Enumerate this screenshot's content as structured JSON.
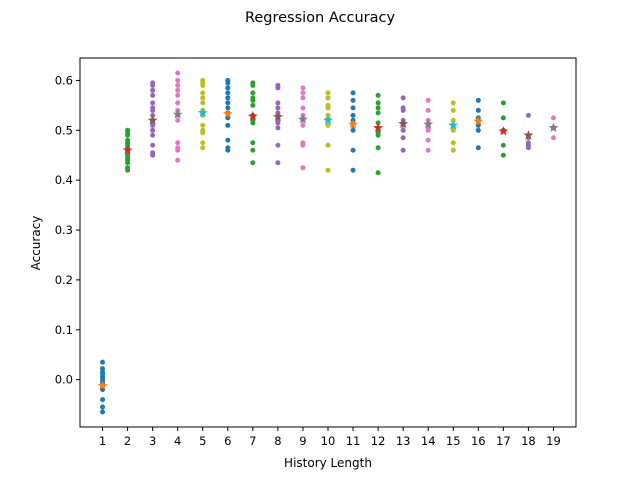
{
  "chart_data": {
    "type": "scatter",
    "title": "Regression Accuracy",
    "xlabel": "History Length",
    "ylabel": "Accuracy",
    "xlim": [
      0.1,
      19.9
    ],
    "ylim": [
      -0.095,
      0.645
    ],
    "xticks": [
      1,
      2,
      3,
      4,
      5,
      6,
      7,
      8,
      9,
      10,
      11,
      12,
      13,
      14,
      15,
      16,
      17,
      18,
      19
    ],
    "yticks": [
      0.0,
      0.1,
      0.2,
      0.3,
      0.4,
      0.5,
      0.6
    ],
    "ytick_labels": [
      "0.0",
      "0.1",
      "0.2",
      "0.3",
      "0.4",
      "0.5",
      "0.6"
    ],
    "grid": false,
    "colors": [
      "#1f77b4",
      "#2ca02c",
      "#9467bd",
      "#e377c2",
      "#bcbd22",
      "#1f77b4",
      "#2ca02c",
      "#9467bd",
      "#e377c2",
      "#bcbd22",
      "#1f77b4",
      "#2ca02c",
      "#9467bd",
      "#e377c2",
      "#bcbd22",
      "#1f77b4",
      "#2ca02c",
      "#9467bd",
      "#e377c2"
    ],
    "mean_colors": [
      "#ff7f0e",
      "#d62728",
      "#8c564b",
      "#7f7f7f",
      "#17becf",
      "#ff7f0e",
      "#d62728",
      "#8c564b",
      "#7f7f7f",
      "#17becf",
      "#ff7f0e",
      "#d62728",
      "#8c564b",
      "#7f7f7f",
      "#17becf",
      "#ff7f0e",
      "#d62728",
      "#8c564b",
      "#7f7f7f"
    ],
    "series": [
      {
        "x": 1,
        "points": [
          0.035,
          0.022,
          0.015,
          0.01,
          0.005,
          0.0,
          -0.005,
          -0.01,
          -0.015,
          -0.02,
          -0.04,
          -0.055,
          -0.065
        ],
        "mean": -0.012
      },
      {
        "x": 2,
        "points": [
          0.5,
          0.495,
          0.49,
          0.48,
          0.475,
          0.47,
          0.465,
          0.46,
          0.45,
          0.445,
          0.44,
          0.435,
          0.425,
          0.42
        ],
        "mean": 0.46
      },
      {
        "x": 3,
        "points": [
          0.595,
          0.59,
          0.58,
          0.57,
          0.555,
          0.545,
          0.54,
          0.53,
          0.52,
          0.51,
          0.5,
          0.49,
          0.47,
          0.455,
          0.45
        ],
        "mean": 0.52
      },
      {
        "x": 4,
        "points": [
          0.615,
          0.6,
          0.59,
          0.58,
          0.57,
          0.555,
          0.54,
          0.53,
          0.52,
          0.475,
          0.465,
          0.46,
          0.44
        ],
        "mean": 0.532
      },
      {
        "x": 5,
        "points": [
          0.6,
          0.595,
          0.59,
          0.575,
          0.565,
          0.555,
          0.54,
          0.53,
          0.51,
          0.5,
          0.495,
          0.475,
          0.465
        ],
        "mean": 0.535
      },
      {
        "x": 6,
        "points": [
          0.6,
          0.595,
          0.585,
          0.575,
          0.565,
          0.555,
          0.545,
          0.535,
          0.525,
          0.51,
          0.48,
          0.465,
          0.46
        ],
        "mean": 0.533
      },
      {
        "x": 7,
        "points": [
          0.595,
          0.59,
          0.575,
          0.565,
          0.56,
          0.55,
          0.53,
          0.52,
          0.515,
          0.475,
          0.46,
          0.435
        ],
        "mean": 0.528
      },
      {
        "x": 8,
        "points": [
          0.59,
          0.585,
          0.555,
          0.545,
          0.535,
          0.53,
          0.52,
          0.515,
          0.505,
          0.47,
          0.435
        ],
        "mean": 0.527
      },
      {
        "x": 9,
        "points": [
          0.585,
          0.575,
          0.565,
          0.545,
          0.53,
          0.52,
          0.51,
          0.475,
          0.47,
          0.425
        ],
        "mean": 0.522
      },
      {
        "x": 10,
        "points": [
          0.575,
          0.565,
          0.55,
          0.545,
          0.53,
          0.525,
          0.51,
          0.47,
          0.42
        ],
        "mean": 0.52
      },
      {
        "x": 11,
        "points": [
          0.575,
          0.56,
          0.545,
          0.53,
          0.52,
          0.51,
          0.5,
          0.46,
          0.42
        ],
        "mean": 0.512
      },
      {
        "x": 12,
        "points": [
          0.57,
          0.555,
          0.545,
          0.535,
          0.515,
          0.5,
          0.495,
          0.49,
          0.465,
          0.415
        ],
        "mean": 0.505
      },
      {
        "x": 13,
        "points": [
          0.565,
          0.545,
          0.54,
          0.52,
          0.51,
          0.5,
          0.485,
          0.46
        ],
        "mean": 0.513
      },
      {
        "x": 14,
        "points": [
          0.56,
          0.54,
          0.52,
          0.505,
          0.5,
          0.48,
          0.46
        ],
        "mean": 0.512
      },
      {
        "x": 15,
        "points": [
          0.555,
          0.54,
          0.52,
          0.51,
          0.5,
          0.475,
          0.46
        ],
        "mean": 0.51
      },
      {
        "x": 16,
        "points": [
          0.56,
          0.54,
          0.525,
          0.51,
          0.5,
          0.465
        ],
        "mean": 0.518
      },
      {
        "x": 17,
        "points": [
          0.555,
          0.525,
          0.5,
          0.47,
          0.45
        ],
        "mean": 0.498
      },
      {
        "x": 18,
        "points": [
          0.53,
          0.485,
          0.475,
          0.47,
          0.465
        ],
        "mean": 0.49
      },
      {
        "x": 19,
        "points": [
          0.525,
          0.505,
          0.485
        ],
        "mean": 0.505
      }
    ]
  }
}
